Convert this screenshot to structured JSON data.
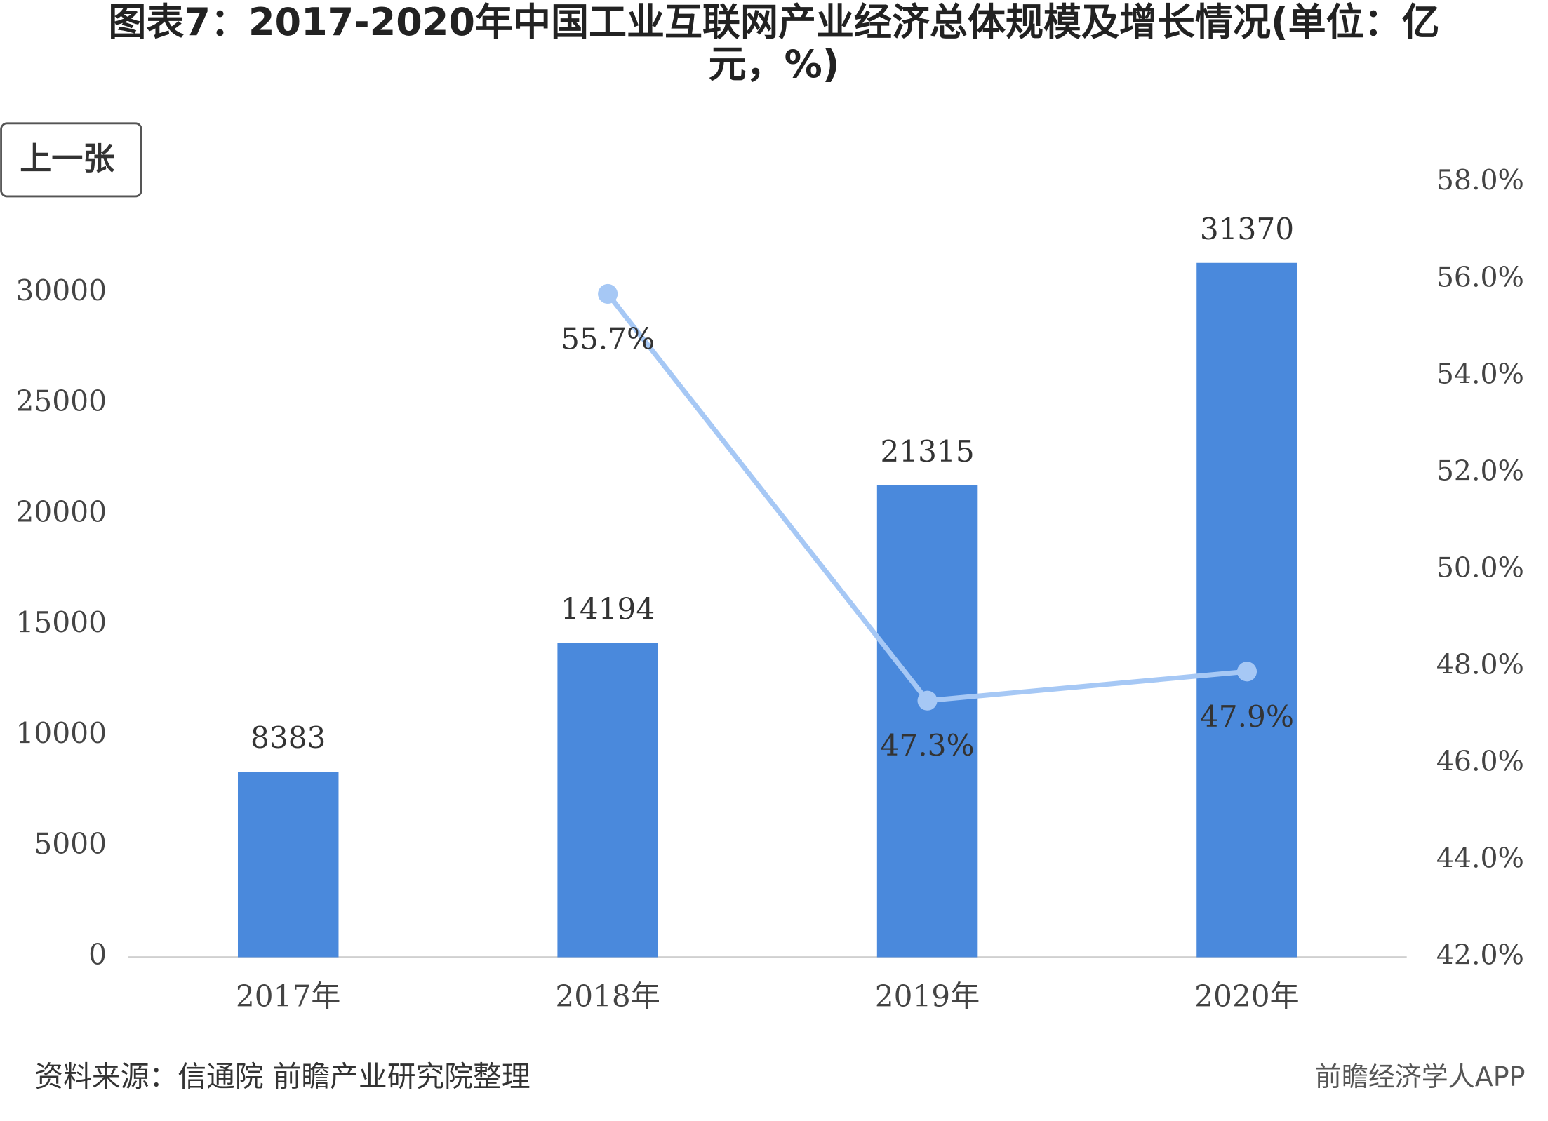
{
  "chart_data": {
    "type": "bar",
    "title": "图表7：2017-2020年中国工业互联网产业经济总体规模及增长情况(单位：亿元，%)",
    "categories": [
      "2017年",
      "2018年",
      "2019年",
      "2020年"
    ],
    "series": [
      {
        "type": "bar",
        "color": "#4a89dc",
        "values": [
          8383,
          14194,
          21315,
          31370
        ]
      },
      {
        "type": "line",
        "axis": "y2",
        "color": "#a6c8f5",
        "values": [
          null,
          55.7,
          47.3,
          47.9
        ],
        "value_labels": [
          null,
          "55.7%",
          "47.3%",
          "47.9%"
        ]
      }
    ],
    "ylim": [
      0,
      35000
    ],
    "yticks": [
      0,
      5000,
      10000,
      15000,
      20000,
      25000,
      30000
    ],
    "y2lim": [
      42,
      58
    ],
    "y2ticks": [
      {
        "value": 42,
        "label": "42.0%"
      },
      {
        "value": 44,
        "label": "44.0%"
      },
      {
        "value": 46,
        "label": "46.0%"
      },
      {
        "value": 48,
        "label": "48.0%"
      },
      {
        "value": 50,
        "label": "50.0%"
      },
      {
        "value": 52,
        "label": "52.0%"
      },
      {
        "value": 54,
        "label": "54.0%"
      },
      {
        "value": 56,
        "label": "56.0%"
      },
      {
        "value": 58,
        "label": "58.0%"
      }
    ],
    "grid": false
  },
  "button": "上一张",
  "source": "资料来源：信通院 前瞻产业研究院整理",
  "brand": "前瞻经济学人APP"
}
